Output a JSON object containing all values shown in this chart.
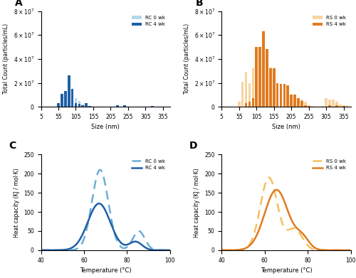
{
  "A": {
    "label": "A",
    "sizes": [
      55,
      65,
      75,
      85,
      95,
      105,
      115,
      125,
      135,
      145,
      155,
      165,
      175,
      225,
      235,
      245,
      305,
      325,
      345
    ],
    "rc0wk": [
      0,
      4000000.0,
      7000000.0,
      12000000.0,
      8000000.0,
      7000000.0,
      5000000.0,
      2000000.0,
      1500000.0,
      500000.0,
      200000.0,
      100000.0,
      0,
      0,
      0,
      0,
      0,
      0,
      0
    ],
    "rc4wk": [
      3000000.0,
      11000000.0,
      13000000.0,
      26000000.0,
      15000000.0,
      3000000.0,
      2500000.0,
      1000000.0,
      3000000.0,
      500000.0,
      200000.0,
      0,
      0,
      1500000.0,
      0,
      1000000.0,
      0,
      500000.0,
      0
    ],
    "color_light": "#b8d8ea",
    "color_dark": "#1f5fa6",
    "legend1": "RC 0 wk",
    "legend2": "RC 4 wk",
    "xlabel": "Size (nm)",
    "ylabel": "Total Count (particles/mL)",
    "ylim": [
      0,
      80000000.0
    ],
    "xlim": [
      5,
      375
    ],
    "xticks": [
      5,
      55,
      105,
      155,
      205,
      255,
      305,
      355
    ],
    "yticks": [
      0,
      20000000.0,
      40000000.0,
      60000000.0,
      80000000.0
    ]
  },
  "B": {
    "label": "B",
    "sizes": [
      55,
      65,
      75,
      85,
      95,
      105,
      115,
      125,
      135,
      145,
      155,
      165,
      175,
      185,
      195,
      205,
      215,
      225,
      235,
      245,
      255,
      265,
      295,
      305,
      315,
      325,
      335,
      345,
      355,
      365
    ],
    "rs0wk": [
      4000000.0,
      21000000.0,
      29000000.0,
      20000000.0,
      32000000.0,
      33000000.0,
      33000000.0,
      50000000.0,
      48000000.0,
      33000000.0,
      22000000.0,
      19000000.0,
      15000000.0,
      7000000.0,
      5000000.0,
      6000000.0,
      7000000.0,
      6000000.0,
      6000000.0,
      4000000.0,
      1000000.0,
      500000.0,
      500000.0,
      7000000.0,
      6000000.0,
      6000000.0,
      4000000.0,
      2000000.0,
      1000000.0,
      1000000.0
    ],
    "rs4wk": [
      0,
      0,
      3000000.0,
      4000000.0,
      7000000.0,
      50000000.0,
      50000000.0,
      63000000.0,
      48000000.0,
      32000000.0,
      32000000.0,
      20000000.0,
      19000000.0,
      19000000.0,
      18000000.0,
      10000000.0,
      10000000.0,
      7000000.0,
      5000000.0,
      1000000.0,
      500000.0,
      0,
      0,
      0,
      1000000.0,
      0,
      1000000.0,
      0,
      500000.0,
      0
    ],
    "color_light": "#f5d5a0",
    "color_dark": "#e07b20",
    "legend1": "RS 0 wk",
    "legend2": "RS 4 wk",
    "xlabel": "Size (nm)",
    "ylabel": "Total Count (particles/mL)",
    "ylim": [
      0,
      80000000.0
    ],
    "xlim": [
      5,
      375
    ],
    "xticks": [
      5,
      55,
      105,
      155,
      205,
      255,
      305,
      355
    ],
    "yticks": [
      0,
      20000000.0,
      40000000.0,
      60000000.0,
      80000000.0
    ]
  },
  "C": {
    "label": "C",
    "color_dashed": "#6baed6",
    "color_solid": "#1f5fa6",
    "legend1": "RC 0 wk",
    "legend2": "RC 4 wk",
    "xlabel": "Temperature (°C)",
    "ylabel": "Heat capacity (KJ / mol·K)",
    "xlim": [
      40,
      100
    ],
    "ylim": [
      0,
      250
    ],
    "yticks": [
      0,
      50,
      100,
      150,
      200,
      250
    ],
    "xticks": [
      40,
      60,
      80,
      100
    ],
    "peak0_mu": 67.5,
    "peak0_sigma": 3.8,
    "peak0_amp": 210,
    "peak0b_mu": 85.5,
    "peak0b_sigma": 2.8,
    "peak0b_amp": 50,
    "peak4_mu": 67.0,
    "peak4_sigma": 5.2,
    "peak4_amp": 122,
    "peak4b_mu": 84.0,
    "peak4b_sigma": 3.0,
    "peak4b_amp": 22
  },
  "D": {
    "label": "D",
    "color_dashed": "#f5c060",
    "color_solid": "#e07b20",
    "legend1": "RS 0 wk",
    "legend2": "RS 4 wk",
    "xlabel": "Temperature (°C)",
    "ylabel": "Heat capacity (KJ / mol·K)",
    "xlim": [
      40,
      100
    ],
    "ylim": [
      0,
      250
    ],
    "yticks": [
      0,
      50,
      100,
      150,
      200,
      250
    ],
    "xticks": [
      40,
      60,
      80,
      100
    ],
    "peak0_mu": 62.0,
    "peak0_sigma": 4.0,
    "peak0_amp": 190,
    "peak0b_mu": 74.0,
    "peak0b_sigma": 3.5,
    "peak0b_amp": 55,
    "peak4_mu": 65.5,
    "peak4_sigma": 5.5,
    "peak4_amp": 158,
    "peak4b_mu": 77.5,
    "peak4b_sigma": 3.2,
    "peak4b_amp": 30
  },
  "background_color": "#ffffff",
  "bar_width": 7.5
}
